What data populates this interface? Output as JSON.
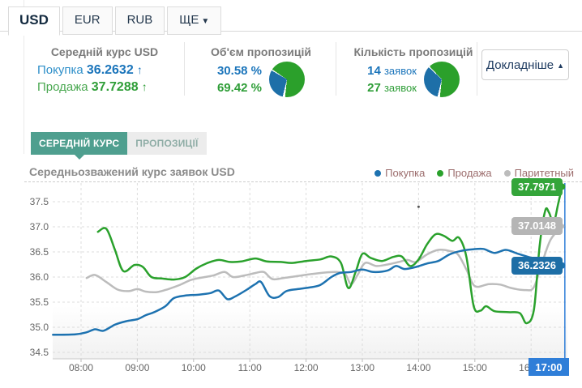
{
  "colors": {
    "buy_text": "#1b75bb",
    "sell_text": "#2f9e38",
    "buy_pie": "#1d6fa8",
    "sell_pie": "#2ba02b",
    "active_subtab": "#4f9f8f",
    "crosshair": "#2f7ed8"
  },
  "tabs": [
    {
      "label": "USD"
    },
    {
      "label": "EUR"
    },
    {
      "label": "RUB"
    },
    {
      "label": "ЩЕ",
      "caret": "▼"
    }
  ],
  "summary": {
    "rate": {
      "title": "Середній курс USD",
      "buy_label": "Покупка",
      "buy_value": "36.2632",
      "buy_arrow": "↑",
      "sell_label": "Продажа",
      "sell_value": "37.7288",
      "sell_arrow": "↑"
    },
    "volume": {
      "title": "Об'єм пропозицій",
      "buy_pct": "30.58 %",
      "sell_pct": "69.42 %",
      "buy_share": 30.58
    },
    "count": {
      "title": "Кількість пропозицій",
      "buy_count": "14",
      "buy_unit": "заявок",
      "sell_count": "27",
      "sell_unit": "заявок",
      "buy_share": 34.15
    },
    "details_button": "Докладніше",
    "details_caret": "▲"
  },
  "subtabs": {
    "active": "СЕРЕДНІЙ КУРС",
    "inactive": "ПРОПОЗИЦІЇ"
  },
  "chart_data": {
    "type": "line",
    "title": "Середньозважений курс заявок USD",
    "xlabel": "",
    "ylabel": "",
    "ylim": [
      34.35,
      37.85
    ],
    "grid": "dashed",
    "legend_position": "top-right",
    "x_ticks": [
      "08:00",
      "09:00",
      "10:00",
      "11:00",
      "12:00",
      "13:00",
      "14:00",
      "15:00",
      "16:00"
    ],
    "y_ticks": [
      {
        "v": 34.5,
        "label": "34.5"
      },
      {
        "v": 35.0,
        "label": "35.0"
      },
      {
        "v": 35.5,
        "label": "35.5"
      },
      {
        "v": 36.0,
        "label": "36.0"
      },
      {
        "v": 36.5,
        "label": "36.5"
      },
      {
        "v": 37.0,
        "label": "37.0"
      },
      {
        "v": 37.5,
        "label": "37.5"
      }
    ],
    "crosshair": {
      "x": 16.6,
      "label": "17:00"
    },
    "marker_dot": {
      "x": 14.0,
      "v": 37.4
    },
    "series": [
      {
        "name": "Покупка",
        "color": "#1d72b0",
        "badge_color": "#1d6ea6",
        "end_label": "36.2326",
        "points": [
          [
            7.5,
            34.85
          ],
          [
            7.9,
            34.86
          ],
          [
            8.1,
            34.9
          ],
          [
            8.25,
            34.96
          ],
          [
            8.4,
            34.93
          ],
          [
            8.6,
            35.05
          ],
          [
            8.8,
            35.12
          ],
          [
            9.0,
            35.16
          ],
          [
            9.15,
            35.24
          ],
          [
            9.3,
            35.3
          ],
          [
            9.5,
            35.42
          ],
          [
            9.65,
            35.58
          ],
          [
            9.85,
            35.63
          ],
          [
            10.1,
            35.65
          ],
          [
            10.3,
            35.68
          ],
          [
            10.45,
            35.73
          ],
          [
            10.6,
            35.56
          ],
          [
            10.75,
            35.62
          ],
          [
            10.95,
            35.75
          ],
          [
            11.1,
            35.86
          ],
          [
            11.2,
            35.9
          ],
          [
            11.35,
            35.62
          ],
          [
            11.5,
            35.6
          ],
          [
            11.65,
            35.72
          ],
          [
            11.85,
            35.76
          ],
          [
            12.05,
            35.79
          ],
          [
            12.25,
            35.84
          ],
          [
            12.45,
            36.0
          ],
          [
            12.6,
            36.08
          ],
          [
            12.8,
            36.1
          ],
          [
            13.0,
            36.15
          ],
          [
            13.2,
            36.1
          ],
          [
            13.45,
            36.13
          ],
          [
            13.6,
            36.22
          ],
          [
            13.75,
            36.16
          ],
          [
            13.95,
            36.2
          ],
          [
            14.15,
            36.27
          ],
          [
            14.35,
            36.32
          ],
          [
            14.55,
            36.45
          ],
          [
            14.75,
            36.52
          ],
          [
            14.95,
            36.55
          ],
          [
            15.15,
            36.56
          ],
          [
            15.35,
            36.48
          ],
          [
            15.55,
            36.54
          ],
          [
            15.75,
            36.47
          ],
          [
            15.95,
            36.4
          ],
          [
            16.15,
            36.33
          ],
          [
            16.35,
            36.2
          ],
          [
            16.55,
            36.23
          ]
        ]
      },
      {
        "name": "Продажа",
        "color": "#2aa12c",
        "badge_color": "#34a53a",
        "end_label": "37.7971",
        "points": [
          [
            8.3,
            36.9
          ],
          [
            8.45,
            36.96
          ],
          [
            8.6,
            36.55
          ],
          [
            8.75,
            36.12
          ],
          [
            8.95,
            36.24
          ],
          [
            9.1,
            36.2
          ],
          [
            9.25,
            36.0
          ],
          [
            9.45,
            35.97
          ],
          [
            9.65,
            35.95
          ],
          [
            9.85,
            36.0
          ],
          [
            10.05,
            36.17
          ],
          [
            10.25,
            36.28
          ],
          [
            10.45,
            36.34
          ],
          [
            10.65,
            36.3
          ],
          [
            10.85,
            36.31
          ],
          [
            11.1,
            36.37
          ],
          [
            11.3,
            36.31
          ],
          [
            11.55,
            36.3
          ],
          [
            11.75,
            36.28
          ],
          [
            12.0,
            36.32
          ],
          [
            12.25,
            36.35
          ],
          [
            12.45,
            36.41
          ],
          [
            12.62,
            36.28
          ],
          [
            12.75,
            35.78
          ],
          [
            12.88,
            36.1
          ],
          [
            13.0,
            36.46
          ],
          [
            13.15,
            36.38
          ],
          [
            13.35,
            36.32
          ],
          [
            13.55,
            36.4
          ],
          [
            13.7,
            36.41
          ],
          [
            13.85,
            36.22
          ],
          [
            14.0,
            36.35
          ],
          [
            14.15,
            36.65
          ],
          [
            14.3,
            36.85
          ],
          [
            14.45,
            36.82
          ],
          [
            14.6,
            36.72
          ],
          [
            14.72,
            36.78
          ],
          [
            14.85,
            36.4
          ],
          [
            14.98,
            35.42
          ],
          [
            15.1,
            35.33
          ],
          [
            15.2,
            35.42
          ],
          [
            15.35,
            35.32
          ],
          [
            15.6,
            35.3
          ],
          [
            15.8,
            35.28
          ],
          [
            15.92,
            35.08
          ],
          [
            16.05,
            35.35
          ],
          [
            16.15,
            36.6
          ],
          [
            16.25,
            37.32
          ],
          [
            16.32,
            37.28
          ],
          [
            16.4,
            37.08
          ],
          [
            16.48,
            37.45
          ],
          [
            16.55,
            37.8
          ]
        ]
      },
      {
        "name": "Паритетный",
        "color": "#bcbcbc",
        "badge_color": "#b5b5b5",
        "end_label": "37.0148",
        "points": [
          [
            8.1,
            35.98
          ],
          [
            8.25,
            36.04
          ],
          [
            8.45,
            35.9
          ],
          [
            8.65,
            35.75
          ],
          [
            8.85,
            35.72
          ],
          [
            9.0,
            35.76
          ],
          [
            9.15,
            35.71
          ],
          [
            9.35,
            35.7
          ],
          [
            9.55,
            35.76
          ],
          [
            9.75,
            35.84
          ],
          [
            9.95,
            35.94
          ],
          [
            10.15,
            35.99
          ],
          [
            10.35,
            36.03
          ],
          [
            10.55,
            36.1
          ],
          [
            10.7,
            36.0
          ],
          [
            10.9,
            36.03
          ],
          [
            11.1,
            36.08
          ],
          [
            11.25,
            36.1
          ],
          [
            11.4,
            35.96
          ],
          [
            11.6,
            35.98
          ],
          [
            11.85,
            36.02
          ],
          [
            12.1,
            36.06
          ],
          [
            12.35,
            36.09
          ],
          [
            12.55,
            36.1
          ],
          [
            12.7,
            36.05
          ],
          [
            12.8,
            35.86
          ],
          [
            12.92,
            36.05
          ],
          [
            13.05,
            36.28
          ],
          [
            13.25,
            36.22
          ],
          [
            13.45,
            36.25
          ],
          [
            13.65,
            36.3
          ],
          [
            13.8,
            36.34
          ],
          [
            13.95,
            36.3
          ],
          [
            14.15,
            36.45
          ],
          [
            14.35,
            36.54
          ],
          [
            14.55,
            36.52
          ],
          [
            14.7,
            36.45
          ],
          [
            14.85,
            36.15
          ],
          [
            15.0,
            35.82
          ],
          [
            15.25,
            35.86
          ],
          [
            15.45,
            35.85
          ],
          [
            15.65,
            35.78
          ],
          [
            15.9,
            35.74
          ],
          [
            16.05,
            35.8
          ],
          [
            16.2,
            36.3
          ],
          [
            16.35,
            36.75
          ],
          [
            16.55,
            37.01
          ]
        ]
      }
    ]
  }
}
